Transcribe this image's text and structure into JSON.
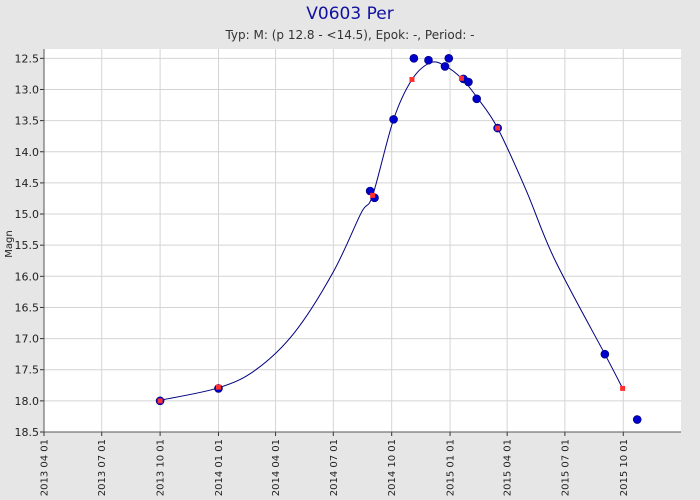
{
  "chart_data": {
    "type": "scatter",
    "title": "V0603 Per",
    "subtitle": "Typ: M: (p 12.8 - <14.5), Epok: -, Period: -",
    "xlabel": "",
    "ylabel": "Magn",
    "x_axis_type": "date",
    "xlim": [
      "2013-04-01",
      "2015-12-31"
    ],
    "ylim": [
      12.35,
      18.5
    ],
    "y_inverted": true,
    "grid": true,
    "x_tick_labels": [
      "2013 04 01",
      "2013 07 01",
      "2013 10 01",
      "2014 01 01",
      "2014 04 01",
      "2014 07 01",
      "2014 10 01",
      "2015 01 01",
      "2015 04 01",
      "2015 07 01",
      "2015 10 01"
    ],
    "y_tick_labels": [
      "12.5",
      "13.0",
      "13.5",
      "14.0",
      "14.5",
      "15.0",
      "15.5",
      "16.0",
      "16.5",
      "17.0",
      "17.5",
      "18.0",
      "18.5"
    ],
    "y_ticks": [
      12.5,
      13.0,
      13.5,
      14.0,
      14.5,
      15.0,
      15.5,
      16.0,
      16.5,
      17.0,
      17.5,
      18.0,
      18.5
    ],
    "series": [
      {
        "color": "#0000cc",
        "marker": "circle",
        "points": [
          {
            "x": "2013-10-01",
            "y": 18.0
          },
          {
            "x": "2014-01-01",
            "y": 17.8
          },
          {
            "x": "2014-08-28",
            "y": 14.63
          },
          {
            "x": "2014-09-04",
            "y": 14.74
          },
          {
            "x": "2014-10-04",
            "y": 13.48
          },
          {
            "x": "2014-11-05",
            "y": 12.5
          },
          {
            "x": "2014-11-28",
            "y": 12.53
          },
          {
            "x": "2014-12-24",
            "y": 12.63
          },
          {
            "x": "2014-12-30",
            "y": 12.5
          },
          {
            "x": "2015-01-22",
            "y": 12.83
          },
          {
            "x": "2015-01-30",
            "y": 12.88
          },
          {
            "x": "2015-02-12",
            "y": 13.15
          },
          {
            "x": "2015-03-17",
            "y": 13.62
          },
          {
            "x": "2015-09-02",
            "y": 17.25
          },
          {
            "x": "2015-10-23",
            "y": 18.3
          }
        ]
      },
      {
        "color": "#ff3030",
        "marker": "square",
        "points": [
          {
            "x": "2013-10-01",
            "y": 18.0
          },
          {
            "x": "2014-01-01",
            "y": 17.78
          },
          {
            "x": "2014-09-01",
            "y": 14.7
          },
          {
            "x": "2014-11-02",
            "y": 12.84
          },
          {
            "x": "2015-01-19",
            "y": 12.82
          },
          {
            "x": "2015-03-17",
            "y": 13.62
          },
          {
            "x": "2015-09-30",
            "y": 17.8
          }
        ]
      }
    ],
    "fit_curve": {
      "color": "#000080",
      "points": [
        {
          "x": "2013-10-01",
          "y": 17.99
        },
        {
          "x": "2014-01-01",
          "y": 17.79
        },
        {
          "x": "2014-03-01",
          "y": 17.5
        },
        {
          "x": "2014-05-01",
          "y": 16.9
        },
        {
          "x": "2014-07-01",
          "y": 15.93
        },
        {
          "x": "2014-08-14",
          "y": 14.98
        },
        {
          "x": "2014-09-01",
          "y": 14.7
        },
        {
          "x": "2014-10-04",
          "y": 13.48
        },
        {
          "x": "2014-11-02",
          "y": 12.84
        },
        {
          "x": "2014-12-01",
          "y": 12.57
        },
        {
          "x": "2014-12-24",
          "y": 12.62
        },
        {
          "x": "2015-01-19",
          "y": 12.82
        },
        {
          "x": "2015-02-12",
          "y": 13.12
        },
        {
          "x": "2015-03-17",
          "y": 13.62
        },
        {
          "x": "2015-05-01",
          "y": 14.62
        },
        {
          "x": "2015-06-15",
          "y": 15.73
        },
        {
          "x": "2015-09-02",
          "y": 17.25
        },
        {
          "x": "2015-09-30",
          "y": 17.8
        }
      ]
    }
  }
}
